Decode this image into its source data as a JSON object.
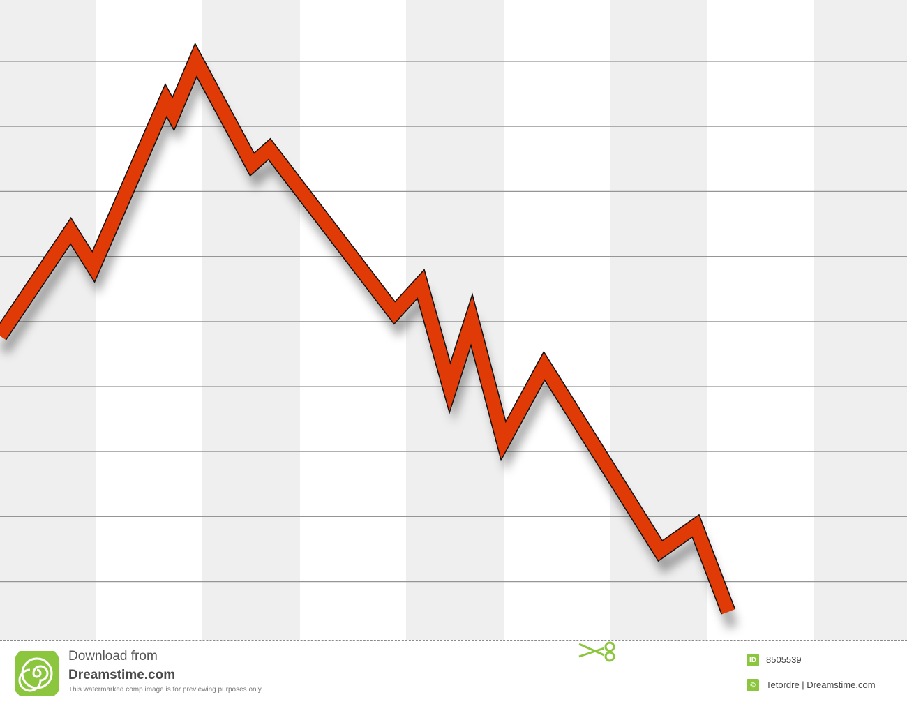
{
  "chart_data": {
    "type": "line",
    "title": "",
    "xlabel": "",
    "ylabel": "",
    "grid": true,
    "band_count": 9,
    "gridline_count": 9,
    "xlim": [
      0,
      100
    ],
    "ylim": [
      0,
      100
    ],
    "series": [
      {
        "color": "#e03a06",
        "points": [
          [
            0,
            47.5
          ],
          [
            7.8,
            63.9
          ],
          [
            10.3,
            58.3
          ],
          [
            18.3,
            84.3
          ],
          [
            19.1,
            82.2
          ],
          [
            21.6,
            90.6
          ],
          [
            27.8,
            74.3
          ],
          [
            29.7,
            76.7
          ],
          [
            43.5,
            51.1
          ],
          [
            46.4,
            55.6
          ],
          [
            49.6,
            39.4
          ],
          [
            52.0,
            50.0
          ],
          [
            55.5,
            31.1
          ],
          [
            60.0,
            42.8
          ],
          [
            72.8,
            13.9
          ],
          [
            76.7,
            17.8
          ],
          [
            80.3,
            4.4
          ]
        ]
      }
    ],
    "colors": {
      "band": "#efefef",
      "gridline": "#959595",
      "shadow": "#000000"
    }
  },
  "footer": {
    "download_line1": "Download from",
    "download_line2": "Dreamstime.com",
    "disclaimer": "This watermarked comp image is for previewing purposes only.",
    "id_badge": "ID",
    "id_number": "8505539",
    "copyright_badge": "©",
    "credit": "Tetordre | Dreamstime.com",
    "logo_icon": "spiral-logo-icon",
    "scissors_icon": "scissors-icon",
    "accent_color": "#8cc63f"
  }
}
